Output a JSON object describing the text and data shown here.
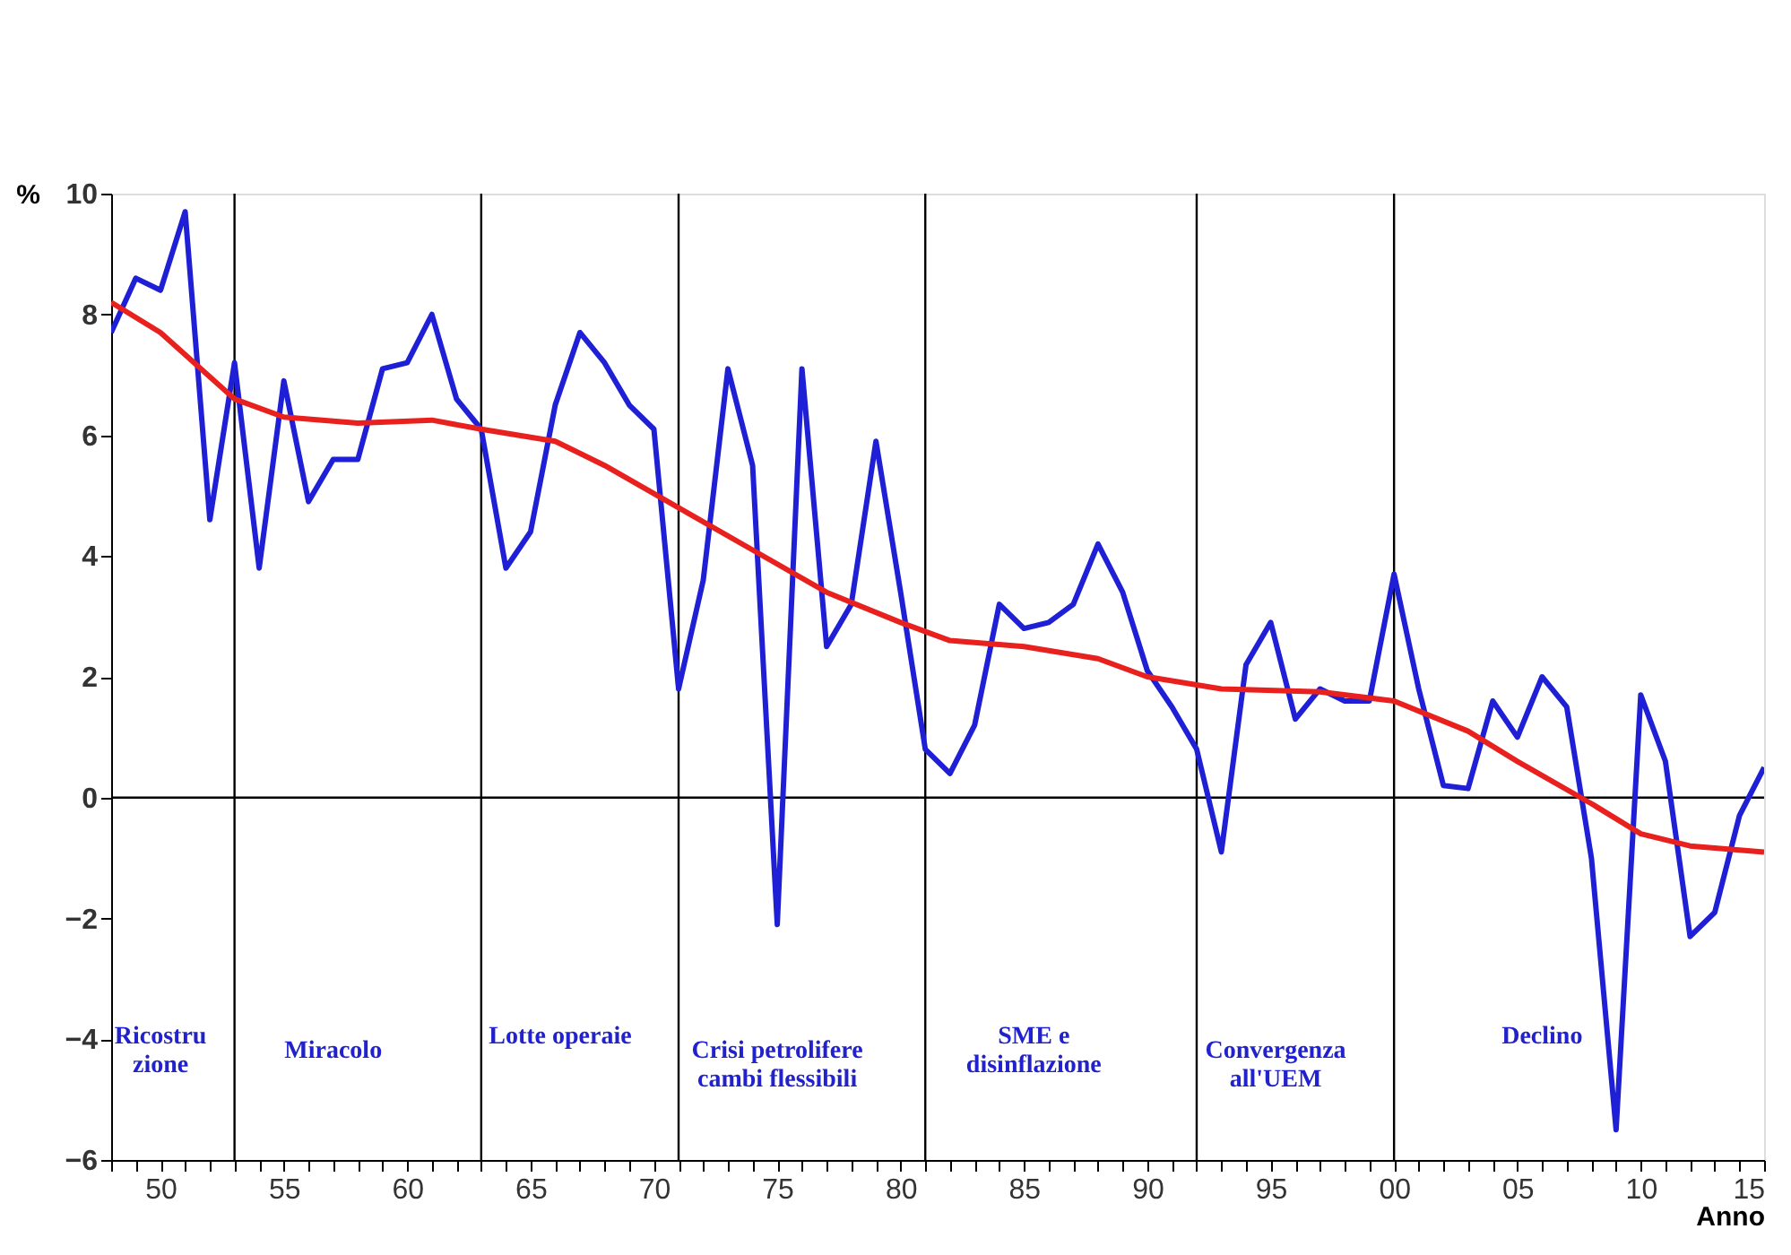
{
  "chart_data": {
    "type": "line",
    "xlabel": "Anno",
    "ylabel": "%",
    "x": [
      1948,
      1949,
      1950,
      1951,
      1952,
      1953,
      1954,
      1955,
      1956,
      1957,
      1958,
      1959,
      1960,
      1961,
      1962,
      1963,
      1964,
      1965,
      1966,
      1967,
      1968,
      1969,
      1970,
      1971,
      1972,
      1973,
      1974,
      1975,
      1976,
      1977,
      1978,
      1979,
      1980,
      1981,
      1982,
      1983,
      1984,
      1985,
      1986,
      1987,
      1988,
      1989,
      1990,
      1991,
      1992,
      1993,
      1994,
      1995,
      1996,
      1997,
      1998,
      1999,
      2000,
      2001,
      2002,
      2003,
      2004,
      2005,
      2006,
      2007,
      2008,
      2009,
      2010,
      2011,
      2012,
      2013,
      2014,
      2015
    ],
    "series": [
      {
        "color": "#1f1fd6",
        "values": [
          7.7,
          8.6,
          8.4,
          9.7,
          4.6,
          7.2,
          3.8,
          6.9,
          4.9,
          5.6,
          5.6,
          7.1,
          7.2,
          8.0,
          6.6,
          6.1,
          3.8,
          4.4,
          6.5,
          7.7,
          7.2,
          6.5,
          6.1,
          1.8,
          3.6,
          7.1,
          5.5,
          -2.1,
          7.1,
          2.5,
          3.2,
          5.9,
          3.4,
          0.8,
          0.4,
          1.2,
          3.2,
          2.8,
          2.9,
          3.2,
          4.2,
          3.4,
          2.1,
          1.5,
          0.8,
          -0.9,
          2.2,
          2.9,
          1.3,
          1.8,
          1.6,
          1.6,
          3.7,
          1.8,
          0.2,
          0.15,
          1.6,
          1.0,
          2.0,
          1.5,
          -1.0,
          -5.5,
          1.7,
          0.6,
          -2.3,
          -1.9,
          -0.3,
          0.5
        ]
      },
      {
        "color": "#e8201e",
        "x": [
          1948,
          1950,
          1953,
          1955,
          1958,
          1961,
          1963,
          1966,
          1968,
          1971,
          1974,
          1977,
          1980,
          1982,
          1985,
          1988,
          1990,
          1993,
          1997,
          2000,
          2003,
          2005,
          2008,
          2010,
          2012,
          2015
        ],
        "values": [
          8.2,
          7.7,
          6.6,
          6.3,
          6.2,
          6.25,
          6.1,
          5.9,
          5.5,
          4.8,
          4.1,
          3.4,
          2.9,
          2.6,
          2.5,
          2.3,
          2.0,
          1.8,
          1.75,
          1.6,
          1.1,
          0.6,
          -0.1,
          -0.6,
          -0.8,
          -0.9
        ]
      }
    ],
    "xlim": [
      1948,
      2015
    ],
    "xticks": [
      {
        "value": 1948,
        "label": null
      },
      {
        "value": 1949,
        "label": null
      },
      {
        "value": 1950,
        "label": "50"
      },
      {
        "value": 1951,
        "label": null
      },
      {
        "value": 1952,
        "label": null
      },
      {
        "value": 1953,
        "label": null
      },
      {
        "value": 1954,
        "label": null
      },
      {
        "value": 1955,
        "label": "55"
      },
      {
        "value": 1956,
        "label": null
      },
      {
        "value": 1957,
        "label": null
      },
      {
        "value": 1958,
        "label": null
      },
      {
        "value": 1959,
        "label": null
      },
      {
        "value": 1960,
        "label": "60"
      },
      {
        "value": 1961,
        "label": null
      },
      {
        "value": 1962,
        "label": null
      },
      {
        "value": 1963,
        "label": null
      },
      {
        "value": 1964,
        "label": null
      },
      {
        "value": 1965,
        "label": "65"
      },
      {
        "value": 1966,
        "label": null
      },
      {
        "value": 1967,
        "label": null
      },
      {
        "value": 1968,
        "label": null
      },
      {
        "value": 1969,
        "label": null
      },
      {
        "value": 1970,
        "label": "70"
      },
      {
        "value": 1971,
        "label": null
      },
      {
        "value": 1972,
        "label": null
      },
      {
        "value": 1973,
        "label": null
      },
      {
        "value": 1974,
        "label": null
      },
      {
        "value": 1975,
        "label": "75"
      },
      {
        "value": 1976,
        "label": null
      },
      {
        "value": 1977,
        "label": null
      },
      {
        "value": 1978,
        "label": null
      },
      {
        "value": 1979,
        "label": null
      },
      {
        "value": 1980,
        "label": "80"
      },
      {
        "value": 1981,
        "label": null
      },
      {
        "value": 1982,
        "label": null
      },
      {
        "value": 1983,
        "label": null
      },
      {
        "value": 1984,
        "label": null
      },
      {
        "value": 1985,
        "label": "85"
      },
      {
        "value": 1986,
        "label": null
      },
      {
        "value": 1987,
        "label": null
      },
      {
        "value": 1988,
        "label": null
      },
      {
        "value": 1989,
        "label": null
      },
      {
        "value": 1990,
        "label": "90"
      },
      {
        "value": 1991,
        "label": null
      },
      {
        "value": 1992,
        "label": null
      },
      {
        "value": 1993,
        "label": null
      },
      {
        "value": 1994,
        "label": null
      },
      {
        "value": 1995,
        "label": "95"
      },
      {
        "value": 1996,
        "label": null
      },
      {
        "value": 1997,
        "label": null
      },
      {
        "value": 1998,
        "label": null
      },
      {
        "value": 1999,
        "label": null
      },
      {
        "value": 2000,
        "label": "00"
      },
      {
        "value": 2001,
        "label": null
      },
      {
        "value": 2002,
        "label": null
      },
      {
        "value": 2003,
        "label": null
      },
      {
        "value": 2004,
        "label": null
      },
      {
        "value": 2005,
        "label": "05"
      },
      {
        "value": 2006,
        "label": null
      },
      {
        "value": 2007,
        "label": null
      },
      {
        "value": 2008,
        "label": null
      },
      {
        "value": 2009,
        "label": null
      },
      {
        "value": 2010,
        "label": "10"
      },
      {
        "value": 2011,
        "label": null
      },
      {
        "value": 2012,
        "label": null
      },
      {
        "value": 2013,
        "label": null
      },
      {
        "value": 2014,
        "label": null
      },
      {
        "value": 2015,
        "label": "15"
      }
    ],
    "ylim": [
      -6,
      10
    ],
    "yticks": [
      -6,
      -4,
      -2,
      0,
      2,
      4,
      6,
      8,
      10
    ],
    "grid": false,
    "marker": "none",
    "line_style": "solid",
    "ref_lines": [
      {
        "axis": "y",
        "value": 0,
        "color": "#000000"
      },
      {
        "axis": "x",
        "value": 1953,
        "color": "#000000"
      },
      {
        "axis": "x",
        "value": 1963,
        "color": "#000000"
      },
      {
        "axis": "x",
        "value": 1971,
        "color": "#000000"
      },
      {
        "axis": "x",
        "value": 1981,
        "color": "#000000"
      },
      {
        "axis": "x",
        "value": 1992,
        "color": "#000000"
      },
      {
        "axis": "x",
        "value": 2000,
        "color": "#000000"
      }
    ],
    "annotations": [
      "Ricostru\nzione",
      "Miracolo",
      "Lotte operaie",
      "Crisi petrolifere\ncambi flessibili",
      "SME e\ndisinflazione",
      "Convergenza\nall'UEM",
      "Declino"
    ]
  }
}
